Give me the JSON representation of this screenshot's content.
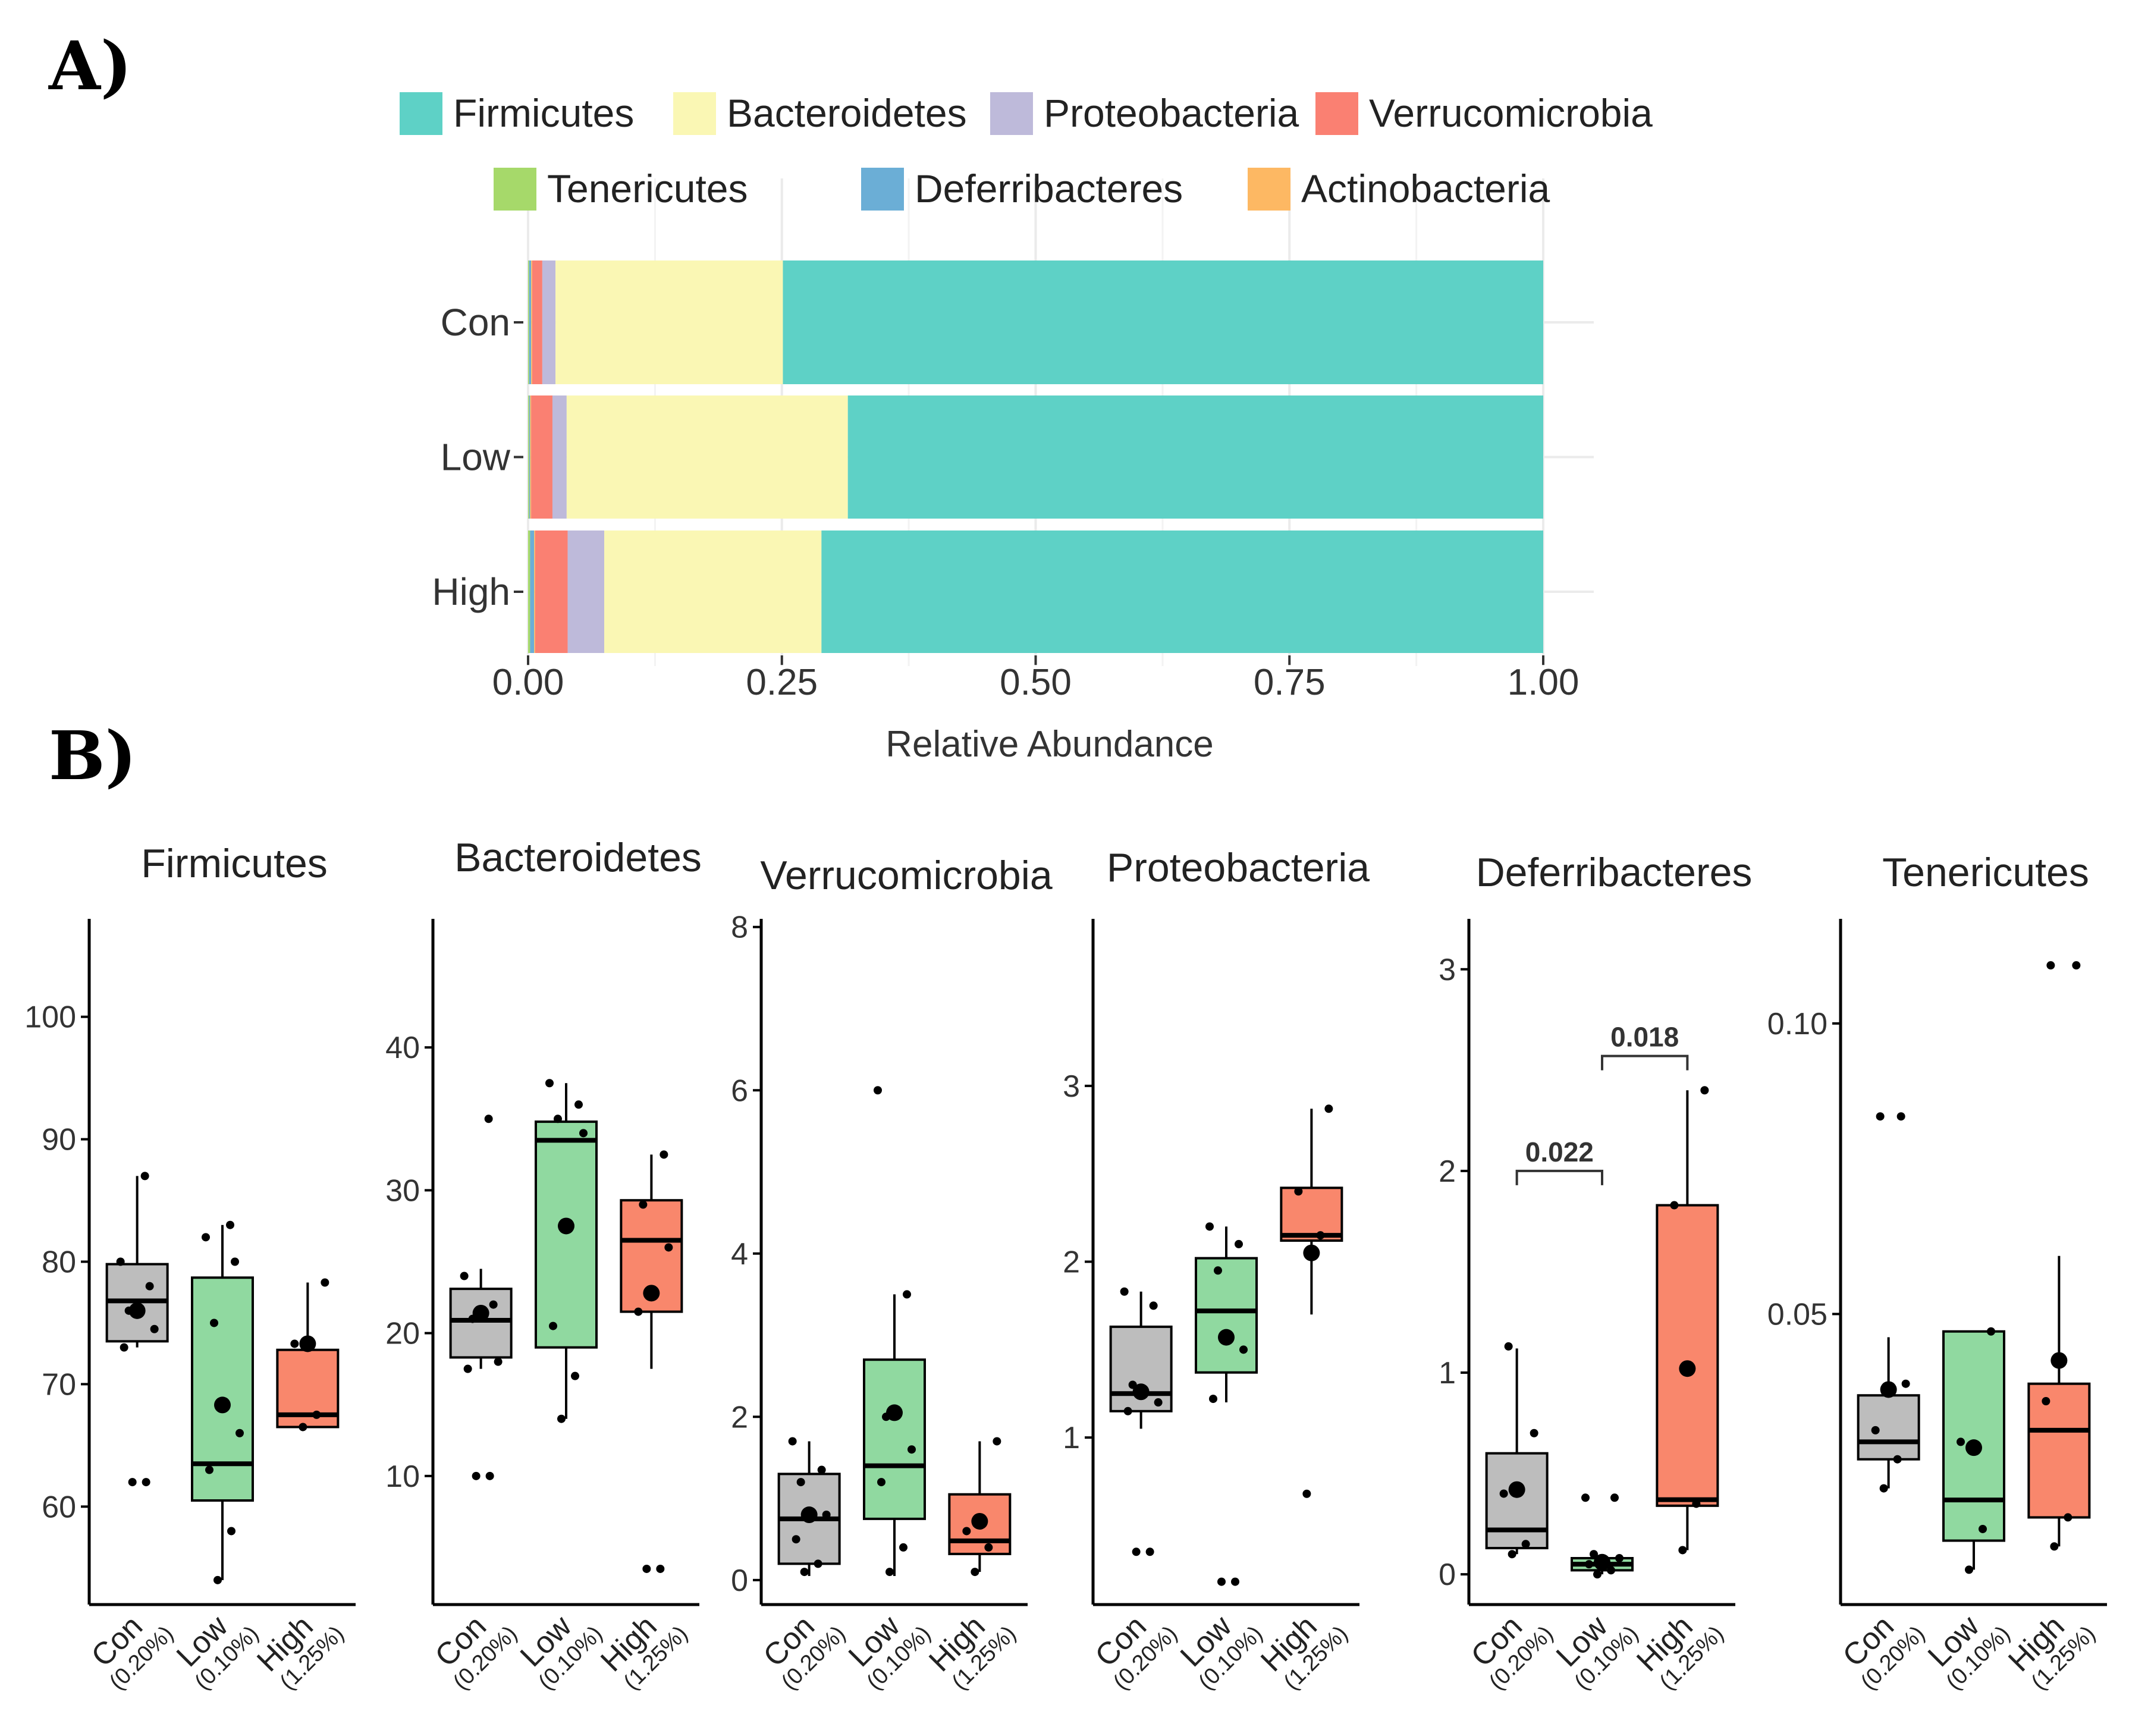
{
  "panels": {
    "a_label": "A)",
    "b_label": "B)"
  },
  "chart_data": [
    {
      "type": "bar",
      "orientation": "horizontal",
      "stacked": true,
      "title": "",
      "xlabel": "Relative Abundance",
      "ylabel": "",
      "xlim": [
        0,
        1
      ],
      "xticks": [
        "0.00",
        "0.25",
        "0.50",
        "0.75",
        "1.00"
      ],
      "categories": [
        "Con",
        "Low",
        "High"
      ],
      "legend_position": "top",
      "series": [
        {
          "name": "Tenericutes",
          "color": "#A6D96A",
          "values": [
            0.001,
            0.001,
            0.002
          ]
        },
        {
          "name": "Deferribacteres",
          "color": "#6BAED6",
          "values": [
            0.002,
            0.001,
            0.004
          ]
        },
        {
          "name": "Actinobacteria",
          "color": "#FDB863",
          "values": [
            0.001,
            0.001,
            0.001
          ]
        },
        {
          "name": "Verrucomicrobia",
          "color": "#FA8072",
          "values": [
            0.01,
            0.021,
            0.032
          ]
        },
        {
          "name": "Proteobacteria",
          "color": "#BEBADA",
          "values": [
            0.013,
            0.014,
            0.036
          ]
        },
        {
          "name": "Bacteroidetes",
          "color": "#FAF7B4",
          "values": [
            0.224,
            0.277,
            0.214
          ]
        },
        {
          "name": "Firmicutes",
          "color": "#5ED1C6",
          "values": [
            0.749,
            0.685,
            0.711
          ]
        }
      ],
      "legend": [
        "Firmicutes",
        "Bacteroidetes",
        "Proteobacteria",
        "Verrucomicrobia",
        "Tenericutes",
        "Deferribacteres",
        "Actinobacteria"
      ]
    },
    {
      "type": "box",
      "title": "Firmicutes",
      "ylim": [
        52,
        108
      ],
      "yticks": [
        "60",
        "70",
        "80",
        "90",
        "100"
      ],
      "groups": [
        {
          "name": "Con",
          "sub": "(0.20%)",
          "color": "#BDBDBD",
          "q1": 73.5,
          "median": 76.8,
          "q3": 79.8,
          "wmin": 73,
          "wmax": 87,
          "mean": 76.0,
          "points": [
            62,
            62,
            73,
            74.5,
            76,
            78,
            80,
            87
          ]
        },
        {
          "name": "Low",
          "sub": "(0.10%)",
          "color": "#90D9A0",
          "q1": 60.5,
          "median": 63.5,
          "q3": 78.7,
          "wmin": 54,
          "wmax": 83,
          "mean": 68.3,
          "points": [
            54,
            58,
            63,
            66,
            75,
            80,
            82,
            83
          ]
        },
        {
          "name": "High",
          "sub": "(1.25%)",
          "color": "#F9876C",
          "q1": 66.5,
          "median": 67.5,
          "q3": 72.8,
          "wmin": 66.5,
          "wmax": 78.3,
          "mean": 73.3,
          "points": [
            66.5,
            67.5,
            73.3,
            78.3
          ]
        }
      ]
    },
    {
      "type": "box",
      "title": "Bacteroidetes",
      "ylim": [
        1,
        49
      ],
      "yticks": [
        "10",
        "20",
        "30",
        "40"
      ],
      "groups": [
        {
          "name": "Con",
          "sub": "(0.20%)",
          "color": "#BDBDBD",
          "q1": 18.3,
          "median": 20.9,
          "q3": 23.1,
          "wmin": 17.5,
          "wmax": 24.5,
          "mean": 21.4,
          "points": [
            10,
            10,
            17.5,
            18,
            21,
            22,
            24,
            35
          ]
        },
        {
          "name": "Low",
          "sub": "(0.10%)",
          "color": "#90D9A0",
          "q1": 19.0,
          "median": 33.5,
          "q3": 34.8,
          "wmin": 14,
          "wmax": 37.5,
          "mean": 27.5,
          "points": [
            14,
            17,
            20.5,
            34,
            35,
            36,
            37.5
          ]
        },
        {
          "name": "High",
          "sub": "(1.25%)",
          "color": "#F9876C",
          "q1": 21.5,
          "median": 26.5,
          "q3": 29.3,
          "wmin": 17.5,
          "wmax": 32.5,
          "mean": 22.8,
          "points": [
            3.5,
            3.5,
            21.5,
            26,
            29,
            32.5
          ]
        }
      ]
    },
    {
      "type": "box",
      "title": "Verrucomicrobia",
      "ylim": [
        -0.3,
        8.1
      ],
      "yticks": [
        "0",
        "2",
        "4",
        "6",
        "8"
      ],
      "groups": [
        {
          "name": "Con",
          "sub": "(0.20%)",
          "color": "#BDBDBD",
          "q1": 0.2,
          "median": 0.75,
          "q3": 1.3,
          "wmin": 0.05,
          "wmax": 1.7,
          "mean": 0.8,
          "points": [
            0.1,
            0.2,
            0.5,
            0.8,
            1.2,
            1.35,
            1.7
          ]
        },
        {
          "name": "Low",
          "sub": "(0.10%)",
          "color": "#90D9A0",
          "q1": 0.75,
          "median": 1.4,
          "q3": 2.7,
          "wmin": 0.05,
          "wmax": 3.5,
          "mean": 2.05,
          "points": [
            0.1,
            0.4,
            1.2,
            1.6,
            2.0,
            3.5,
            6.0
          ]
        },
        {
          "name": "High",
          "sub": "(1.25%)",
          "color": "#F9876C",
          "q1": 0.32,
          "median": 0.48,
          "q3": 1.05,
          "wmin": 0.1,
          "wmax": 1.7,
          "mean": 0.72,
          "points": [
            0.1,
            0.4,
            0.6,
            1.7
          ]
        }
      ]
    },
    {
      "type": "box",
      "title": "Proteobacteria",
      "ylim": [
        0.05,
        3.95
      ],
      "yticks": [
        "1",
        "2",
        "3"
      ],
      "groups": [
        {
          "name": "Con",
          "sub": "(0.20%)",
          "color": "#BDBDBD",
          "q1": 1.15,
          "median": 1.25,
          "q3": 1.63,
          "wmin": 1.05,
          "wmax": 1.83,
          "mean": 1.26,
          "points": [
            0.35,
            0.35,
            1.15,
            1.2,
            1.3,
            1.75,
            1.83
          ]
        },
        {
          "name": "Low",
          "sub": "(0.10%)",
          "color": "#90D9A0",
          "q1": 1.37,
          "median": 1.72,
          "q3": 2.02,
          "wmin": 1.2,
          "wmax": 2.2,
          "mean": 1.57,
          "points": [
            0.18,
            0.18,
            1.22,
            1.5,
            1.95,
            2.1,
            2.2
          ]
        },
        {
          "name": "High",
          "sub": "(1.25%)",
          "color": "#F9876C",
          "q1": 2.12,
          "median": 2.15,
          "q3": 2.42,
          "wmin": 1.7,
          "wmax": 2.87,
          "mean": 2.05,
          "points": [
            0.68,
            2.15,
            2.4,
            2.87
          ]
        }
      ]
    },
    {
      "type": "box",
      "title": "Deferribacteres",
      "ylim": [
        -0.15,
        3.25
      ],
      "yticks": [
        "0",
        "1",
        "2",
        "3"
      ],
      "groups": [
        {
          "name": "Con",
          "sub": "(0.20%)",
          "color": "#BDBDBD",
          "q1": 0.13,
          "median": 0.22,
          "q3": 0.6,
          "wmin": 0.1,
          "wmax": 1.12,
          "mean": 0.42,
          "points": [
            0.1,
            0.15,
            0.4,
            0.7,
            1.13
          ]
        },
        {
          "name": "Low",
          "sub": "(0.10%)",
          "color": "#90D9A0",
          "q1": 0.02,
          "median": 0.05,
          "q3": 0.08,
          "wmin": 0.0,
          "wmax": 0.1,
          "mean": 0.06,
          "points": [
            0.0,
            0.02,
            0.05,
            0.08,
            0.1,
            0.38,
            0.38
          ]
        },
        {
          "name": "High",
          "sub": "(1.25%)",
          "color": "#F9876C",
          "q1": 0.34,
          "median": 0.37,
          "q3": 1.83,
          "wmin": 0.12,
          "wmax": 2.4,
          "mean": 1.02,
          "points": [
            0.12,
            0.35,
            1.83,
            2.4
          ]
        }
      ],
      "annotations": [
        {
          "label": "0.022",
          "from": 0,
          "to": 1,
          "y": 2.0
        },
        {
          "label": "0.018",
          "from": 1,
          "to": 2,
          "y": 2.57
        }
      ]
    },
    {
      "type": "box",
      "title": "Tenericutes",
      "ylim": [
        0,
        0.118
      ],
      "yticks": [
        "0.05",
        "0.10"
      ],
      "ytick_values": [
        0.05,
        0.1
      ],
      "groups": [
        {
          "name": "Con",
          "sub": "(0.20%)",
          "color": "#BDBDBD",
          "q1": 0.025,
          "median": 0.028,
          "q3": 0.036,
          "wmin": 0.02,
          "wmax": 0.046,
          "mean": 0.037,
          "points": [
            0.02,
            0.025,
            0.03,
            0.038,
            0.084,
            0.084
          ]
        },
        {
          "name": "Low",
          "sub": "(0.10%)",
          "color": "#90D9A0",
          "q1": 0.011,
          "median": 0.018,
          "q3": 0.047,
          "wmin": 0.006,
          "wmax": 0.047,
          "mean": 0.027,
          "points": [
            0.006,
            0.013,
            0.028,
            0.047
          ]
        },
        {
          "name": "High",
          "sub": "(1.25%)",
          "color": "#F9876C",
          "q1": 0.015,
          "median": 0.03,
          "q3": 0.038,
          "wmin": 0.01,
          "wmax": 0.06,
          "mean": 0.042,
          "points": [
            0.01,
            0.015,
            0.035,
            0.11,
            0.11
          ]
        }
      ]
    }
  ]
}
